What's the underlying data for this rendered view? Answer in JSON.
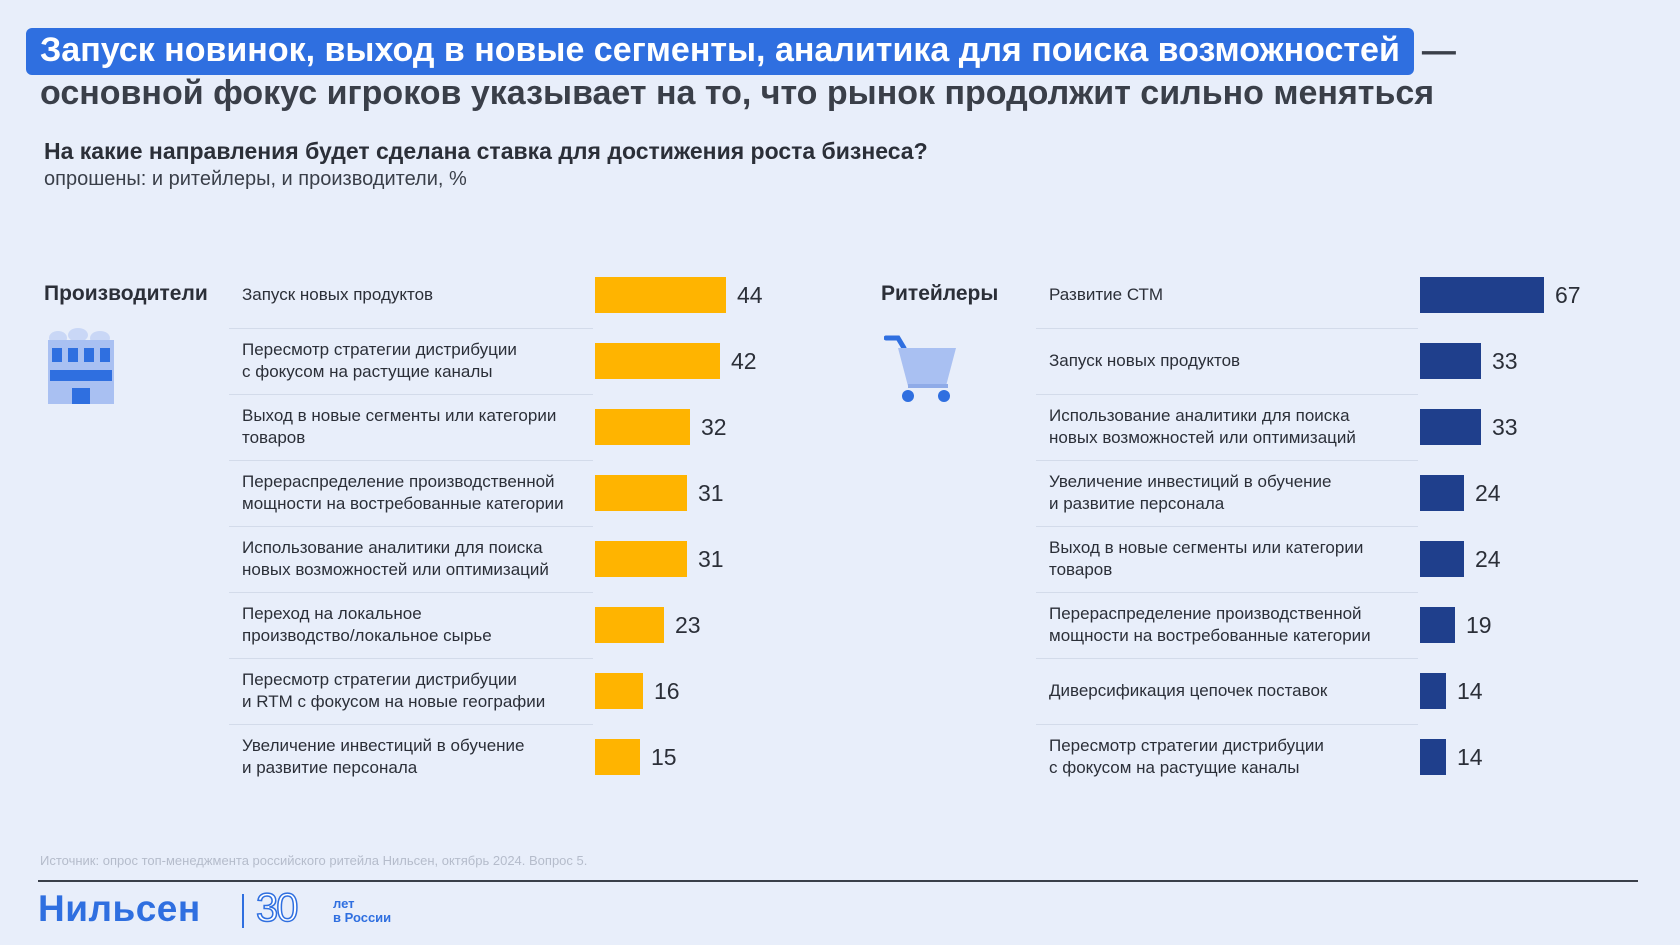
{
  "headline": {
    "highlight": "Запуск новинок, выход в новые сегменты, аналитика для поиска возможностей",
    "dash": "—",
    "rest": "основной фокус игроков указывает на то, что рынок продолжит сильно меняться"
  },
  "question": "На какие направления будет сделана ставка для достижения роста бизнеса?",
  "subtitle": "опрошены: и ритейлеры, и производители, %",
  "colors": {
    "producers": "#ffb400",
    "retailers": "#1f3f8c",
    "accent": "#2f6fe0"
  },
  "icons": {
    "producers": "factory-icon",
    "retailers": "shopping-cart-icon"
  },
  "chart_data": [
    {
      "type": "bar",
      "orientation": "horizontal",
      "title": "Производители",
      "categories": [
        "Запуск новых продуктов",
        "Пересмотр стратегии дистрибуции\nс фокусом на растущие каналы",
        "Выход в новые сегменты или категории\nтоваров",
        "Перераспределение производственной\nмощности на востребованные категории",
        "Использование аналитики для поиска\nновых возможностей или оптимизаций",
        "Переход на локальное\nпроизводство/локальное сырье",
        "Пересмотр стратегии дистрибуции\nи RTM с фокусом на новые географии",
        "Увеличение инвестиций в обучение\nи развитие персонала"
      ],
      "values": [
        44,
        42,
        32,
        31,
        31,
        23,
        16,
        15
      ]
    },
    {
      "type": "bar",
      "orientation": "horizontal",
      "title": "Ритейлеры",
      "categories": [
        "Развитие СТМ",
        "Запуск новых продуктов",
        "Использование аналитики для поиска\nновых возможностей или оптимизаций",
        "Увеличение инвестиций в обучение\nи развитие персонала",
        "Выход в новые сегменты или категории\nтоваров",
        "Перераспределение производственной\nмощности на востребованные категории",
        "Диверсификация цепочек поставок",
        "Пересмотр стратегии дистрибуции\nс фокусом на растущие каналы"
      ],
      "values": [
        67,
        33,
        33,
        24,
        24,
        19,
        14,
        14
      ]
    }
  ],
  "source": "Источник: опрос топ-менеджмента российского ритейла Нильсен, октябрь 2024. Вопрос 5.",
  "logo": {
    "brand": "Нильсен",
    "number": "30",
    "caption": "лет\nв России"
  }
}
